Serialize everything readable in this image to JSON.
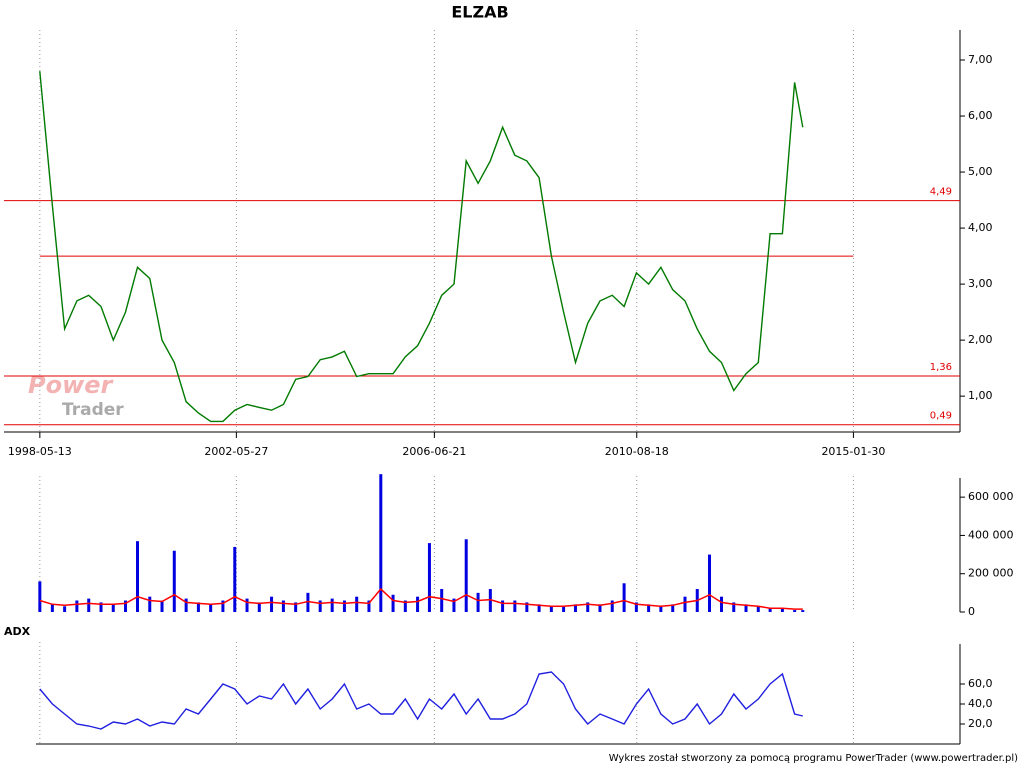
{
  "chart_data": [
    {
      "type": "line",
      "title": "ELZAB",
      "color": "#007a00",
      "xlim": [
        "1997-08-17",
        "2017-04-09"
      ],
      "xticks": [
        "1998-05-13",
        "2002-05-27",
        "2006-06-21",
        "2010-08-18",
        "2015-01-30"
      ],
      "x": [
        "1998-05-13",
        "1998-08-15",
        "1998-11-15",
        "1999-02-15",
        "1999-05-15",
        "1999-08-15",
        "1999-11-15",
        "2000-02-15",
        "2000-05-15",
        "2000-08-15",
        "2000-11-15",
        "2001-02-15",
        "2001-05-15",
        "2001-08-15",
        "2001-11-15",
        "2002-02-15",
        "2002-05-15",
        "2002-08-15",
        "2002-11-15",
        "2003-02-15",
        "2003-05-15",
        "2003-08-15",
        "2003-11-15",
        "2004-02-15",
        "2004-05-15",
        "2004-08-15",
        "2004-11-15",
        "2005-02-15",
        "2005-05-15",
        "2005-08-15",
        "2005-11-15",
        "2006-02-15",
        "2006-05-15",
        "2006-08-15",
        "2006-11-15",
        "2007-02-15",
        "2007-05-15",
        "2007-08-15",
        "2007-11-15",
        "2008-02-15",
        "2008-05-15",
        "2008-08-15",
        "2008-11-15",
        "2009-02-15",
        "2009-05-15",
        "2009-08-15",
        "2009-11-15",
        "2010-02-15",
        "2010-05-15",
        "2010-08-15",
        "2010-11-15",
        "2011-02-15",
        "2011-05-15",
        "2011-08-15",
        "2011-11-15",
        "2012-02-15",
        "2012-05-15",
        "2012-08-15",
        "2012-11-15",
        "2013-02-15",
        "2013-05-15",
        "2013-08-15",
        "2013-11-15",
        "2014-01-15"
      ],
      "values": [
        6.8,
        4.4,
        2.2,
        2.7,
        2.8,
        2.6,
        2.0,
        2.5,
        3.3,
        3.1,
        2.0,
        1.6,
        0.9,
        0.7,
        0.55,
        0.55,
        0.75,
        0.85,
        0.8,
        0.75,
        0.85,
        1.3,
        1.35,
        1.65,
        1.7,
        1.8,
        1.35,
        1.4,
        1.4,
        1.4,
        1.7,
        1.9,
        2.3,
        2.8,
        3.0,
        5.2,
        4.8,
        5.2,
        5.8,
        5.3,
        5.2,
        4.9,
        3.5,
        2.5,
        1.6,
        2.3,
        2.7,
        2.8,
        2.6,
        3.2,
        3.0,
        3.3,
        2.9,
        2.7,
        2.2,
        1.8,
        1.6,
        1.1,
        1.4,
        1.6,
        3.9,
        3.9,
        6.6,
        5.8
      ],
      "ylim": [
        0.36,
        7.5
      ],
      "yticks": [
        {
          "value": 1,
          "label": "1,00"
        },
        {
          "value": 2,
          "label": "2,00"
        },
        {
          "value": 3,
          "label": "3,00"
        },
        {
          "value": 4,
          "label": "4,00"
        },
        {
          "value": 5,
          "label": "5,00"
        },
        {
          "value": 6,
          "label": "6,00"
        },
        {
          "value": 7,
          "label": "7,00"
        }
      ],
      "levels": [
        {
          "value": 4.49,
          "label": "4,49"
        },
        {
          "value": 1.36,
          "label": "1,36"
        },
        {
          "value": 0.49,
          "label": "0,49"
        }
      ],
      "support_line": 3.5,
      "level_color": "#e00000",
      "grid": "x"
    },
    {
      "type": "bar",
      "x": [
        "1998-05-13",
        "1998-08-15",
        "1998-11-15",
        "1999-02-15",
        "1999-05-15",
        "1999-08-15",
        "1999-11-15",
        "2000-02-15",
        "2000-05-15",
        "2000-08-15",
        "2000-11-15",
        "2001-02-15",
        "2001-05-15",
        "2001-08-15",
        "2001-11-15",
        "2002-02-15",
        "2002-05-15",
        "2002-08-15",
        "2002-11-15",
        "2003-02-15",
        "2003-05-15",
        "2003-08-15",
        "2003-11-15",
        "2004-02-15",
        "2004-05-15",
        "2004-08-15",
        "2004-11-15",
        "2005-02-15",
        "2005-05-15",
        "2005-08-15",
        "2005-11-15",
        "2006-02-15",
        "2006-05-15",
        "2006-08-15",
        "2006-11-15",
        "2007-02-15",
        "2007-05-15",
        "2007-08-15",
        "2007-11-15",
        "2008-02-15",
        "2008-05-15",
        "2008-08-15",
        "2008-11-15",
        "2009-02-15",
        "2009-05-15",
        "2009-08-15",
        "2009-11-15",
        "2010-02-15",
        "2010-05-15",
        "2010-08-15",
        "2010-11-15",
        "2011-02-15",
        "2011-05-15",
        "2011-08-15",
        "2011-11-15",
        "2012-02-15",
        "2012-05-15",
        "2012-08-15",
        "2012-11-15",
        "2013-02-15",
        "2013-05-15",
        "2013-08-15",
        "2013-11-15",
        "2014-01-15"
      ],
      "series": [
        {
          "color": "#0000e0",
          "values": [
            160000,
            40000,
            30000,
            60000,
            70000,
            50000,
            40000,
            60000,
            370000,
            80000,
            60000,
            320000,
            70000,
            50000,
            40000,
            60000,
            340000,
            70000,
            50000,
            80000,
            60000,
            50000,
            100000,
            60000,
            70000,
            60000,
            80000,
            60000,
            720000,
            90000,
            60000,
            80000,
            360000,
            120000,
            70000,
            380000,
            100000,
            120000,
            60000,
            60000,
            50000,
            40000,
            30000,
            30000,
            40000,
            50000,
            40000,
            60000,
            150000,
            50000,
            40000,
            30000,
            40000,
            80000,
            120000,
            300000,
            80000,
            50000,
            40000,
            30000,
            20000,
            20000,
            10000,
            10000
          ]
        },
        {
          "type": "line",
          "color": "#ff0000",
          "values": [
            60000,
            40000,
            35000,
            40000,
            45000,
            40000,
            40000,
            45000,
            80000,
            60000,
            55000,
            90000,
            50000,
            45000,
            40000,
            45000,
            80000,
            50000,
            45000,
            50000,
            45000,
            40000,
            55000,
            45000,
            50000,
            45000,
            50000,
            45000,
            120000,
            60000,
            50000,
            55000,
            80000,
            70000,
            55000,
            90000,
            60000,
            65000,
            45000,
            45000,
            40000,
            35000,
            30000,
            30000,
            35000,
            40000,
            35000,
            45000,
            60000,
            40000,
            35000,
            30000,
            35000,
            50000,
            60000,
            90000,
            50000,
            40000,
            35000,
            30000,
            20000,
            20000,
            15000,
            15000
          ]
        }
      ],
      "ylim": [
        0,
        700000
      ],
      "yticks": [
        0,
        {
          "value": 200000,
          "label": "200 000"
        },
        {
          "value": 400000,
          "label": "400 000"
        },
        {
          "value": 600000,
          "label": "600 000"
        }
      ]
    },
    {
      "type": "line",
      "title": "ADX",
      "color": "#2020e0",
      "x": [
        "1998-05-13",
        "1998-08-15",
        "1998-11-15",
        "1999-02-15",
        "1999-05-15",
        "1999-08-15",
        "1999-11-15",
        "2000-02-15",
        "2000-05-15",
        "2000-08-15",
        "2000-11-15",
        "2001-02-15",
        "2001-05-15",
        "2001-08-15",
        "2001-11-15",
        "2002-02-15",
        "2002-05-15",
        "2002-08-15",
        "2002-11-15",
        "2003-02-15",
        "2003-05-15",
        "2003-08-15",
        "2003-11-15",
        "2004-02-15",
        "2004-05-15",
        "2004-08-15",
        "2004-11-15",
        "2005-02-15",
        "2005-05-15",
        "2005-08-15",
        "2005-11-15",
        "2006-02-15",
        "2006-05-15",
        "2006-08-15",
        "2006-11-15",
        "2007-02-15",
        "2007-05-15",
        "2007-08-15",
        "2007-11-15",
        "2008-02-15",
        "2008-05-15",
        "2008-08-15",
        "2008-11-15",
        "2009-02-15",
        "2009-05-15",
        "2009-08-15",
        "2009-11-15",
        "2010-02-15",
        "2010-05-15",
        "2010-08-15",
        "2010-11-15",
        "2011-02-15",
        "2011-05-15",
        "2011-08-15",
        "2011-11-15",
        "2012-02-15",
        "2012-05-15",
        "2012-08-15",
        "2012-11-15",
        "2013-02-15",
        "2013-05-15",
        "2013-08-15",
        "2013-11-15",
        "2014-01-15"
      ],
      "values": [
        55,
        40,
        30,
        20,
        18,
        15,
        22,
        20,
        25,
        18,
        22,
        20,
        35,
        30,
        45,
        60,
        55,
        40,
        48,
        45,
        60,
        40,
        55,
        35,
        45,
        60,
        35,
        40,
        30,
        30,
        45,
        25,
        45,
        35,
        50,
        30,
        45,
        25,
        25,
        30,
        40,
        70,
        72,
        60,
        35,
        20,
        30,
        25,
        20,
        40,
        55,
        30,
        20,
        25,
        40,
        20,
        30,
        50,
        35,
        45,
        60,
        70,
        30,
        28
      ],
      "ylim": [
        0,
        100
      ],
      "yticks": [
        {
          "value": 20,
          "label": "20,0"
        },
        {
          "value": 40,
          "label": "40,0"
        },
        {
          "value": 60,
          "label": "60,0"
        }
      ]
    }
  ],
  "watermark": [
    "Power",
    "Trader"
  ],
  "footer": "Wykres został stworzony za pomocą programu PowerTrader (www.powertrader.pl)"
}
